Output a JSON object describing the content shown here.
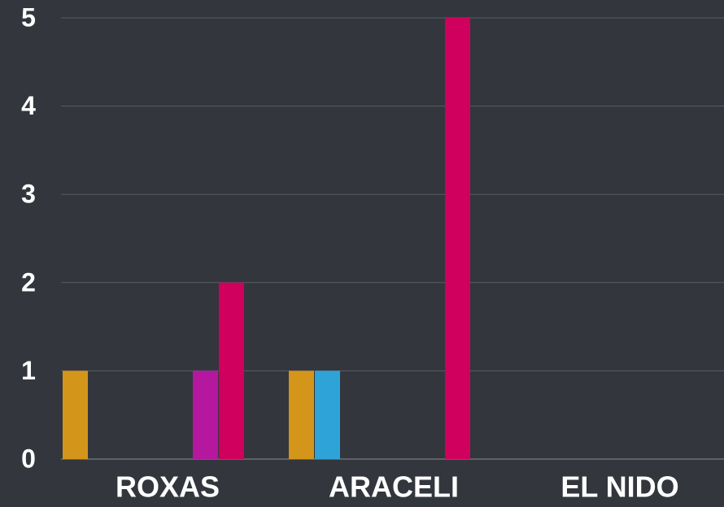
{
  "chart_data": {
    "type": "bar",
    "categories": [
      "ROXAS",
      "ARACELI",
      "EL NIDO"
    ],
    "series": [
      {
        "color": "#d4961a",
        "values": [
          1,
          1,
          0
        ]
      },
      {
        "color": "#2ea3d8",
        "values": [
          0,
          1,
          0
        ]
      },
      {
        "color": "#3cb371",
        "values": [
          0,
          0,
          0
        ]
      },
      {
        "color": "#8e44ad",
        "values": [
          0,
          0,
          0
        ]
      },
      {
        "color": "#e67e22",
        "values": [
          0,
          0,
          0
        ]
      },
      {
        "color": "#b5179e",
        "values": [
          1,
          0,
          0
        ]
      },
      {
        "color": "#d0005e",
        "values": [
          2,
          5,
          0
        ]
      }
    ],
    "ylim": [
      0,
      5
    ],
    "yticks": [
      0,
      1,
      2,
      3,
      4,
      5
    ],
    "grid": true
  }
}
